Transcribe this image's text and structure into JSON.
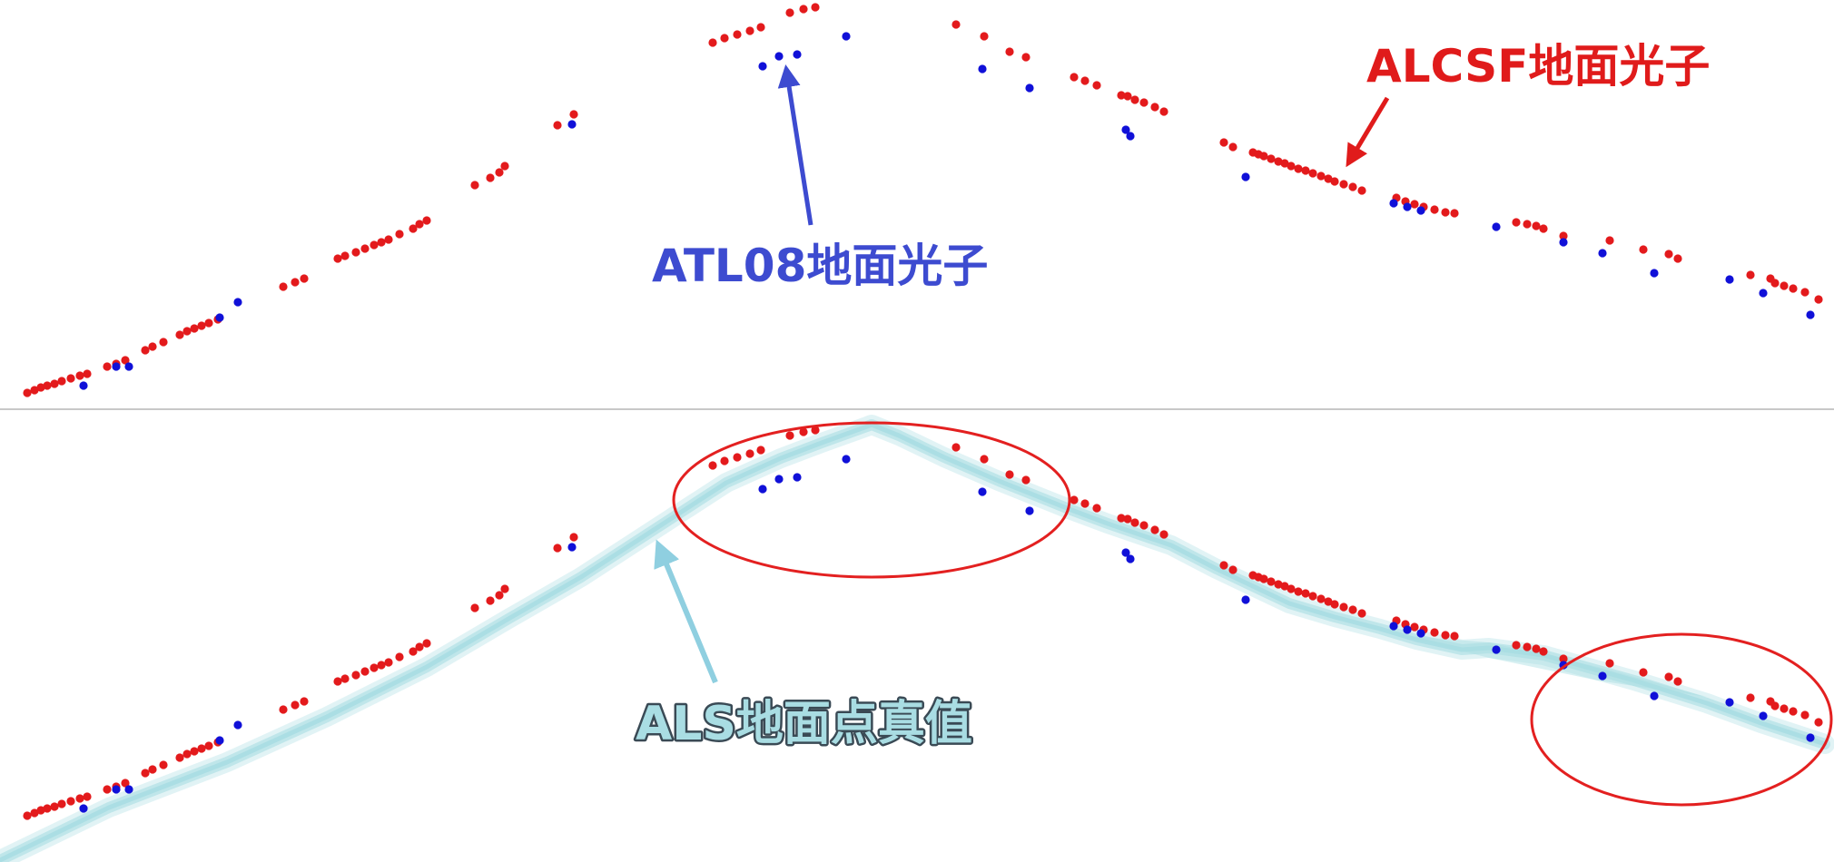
{
  "labels": {
    "atl08": "ATL08地面光子",
    "alcsf": "ALCSF地面光子",
    "als": "ALS地面点真值"
  },
  "colors": {
    "alcsf": "#e31a1c",
    "atl08": "#1010d8",
    "als": "#a9dde3",
    "atl08_label": "#3d4bd0",
    "alcsf_label": "#e01b1b",
    "als_label": "#8fcfe0",
    "highlight": "#e32020",
    "divider": "#c8c8c8"
  },
  "chart_data": {
    "type": "scatter",
    "panels": [
      "photons",
      "photons_with_als_truth"
    ],
    "series": [
      {
        "name": "ALCSF地面光子",
        "points": [
          [
            30,
            433
          ],
          [
            38,
            430
          ],
          [
            45,
            427
          ],
          [
            52,
            425
          ],
          [
            60,
            423
          ],
          [
            68,
            420
          ],
          [
            78,
            417
          ],
          [
            88,
            414
          ],
          [
            96,
            412
          ],
          [
            118,
            404
          ],
          [
            128,
            401
          ],
          [
            138,
            397
          ],
          [
            160,
            386
          ],
          [
            168,
            382
          ],
          [
            180,
            377
          ],
          [
            198,
            369
          ],
          [
            206,
            365
          ],
          [
            214,
            362
          ],
          [
            222,
            359
          ],
          [
            230,
            356
          ],
          [
            240,
            352
          ],
          [
            312,
            316
          ],
          [
            325,
            311
          ],
          [
            335,
            307
          ],
          [
            372,
            285
          ],
          [
            380,
            282
          ],
          [
            392,
            278
          ],
          [
            402,
            274
          ],
          [
            412,
            270
          ],
          [
            420,
            267
          ],
          [
            428,
            264
          ],
          [
            440,
            258
          ],
          [
            455,
            252
          ],
          [
            462,
            247
          ],
          [
            470,
            243
          ],
          [
            523,
            204
          ],
          [
            540,
            196
          ],
          [
            550,
            190
          ],
          [
            556,
            183
          ],
          [
            614,
            138
          ],
          [
            632,
            126
          ],
          [
            785,
            47
          ],
          [
            798,
            42
          ],
          [
            812,
            38
          ],
          [
            826,
            34
          ],
          [
            838,
            30
          ],
          [
            870,
            14
          ],
          [
            885,
            10
          ],
          [
            898,
            8
          ],
          [
            1053,
            27
          ],
          [
            1084,
            40
          ],
          [
            1112,
            57
          ],
          [
            1130,
            63
          ],
          [
            1183,
            85
          ],
          [
            1195,
            89
          ],
          [
            1208,
            94
          ],
          [
            1235,
            105
          ],
          [
            1242,
            106
          ],
          [
            1250,
            110
          ],
          [
            1260,
            113
          ],
          [
            1272,
            118
          ],
          [
            1282,
            123
          ],
          [
            1348,
            157
          ],
          [
            1358,
            162
          ],
          [
            1380,
            168
          ],
          [
            1386,
            170
          ],
          [
            1392,
            172
          ],
          [
            1400,
            175
          ],
          [
            1408,
            178
          ],
          [
            1415,
            180
          ],
          [
            1422,
            183
          ],
          [
            1430,
            186
          ],
          [
            1438,
            188
          ],
          [
            1446,
            191
          ],
          [
            1455,
            194
          ],
          [
            1463,
            197
          ],
          [
            1470,
            200
          ],
          [
            1480,
            203
          ],
          [
            1490,
            206
          ],
          [
            1500,
            210
          ],
          [
            1538,
            218
          ],
          [
            1548,
            222
          ],
          [
            1558,
            225
          ],
          [
            1568,
            228
          ],
          [
            1580,
            231
          ],
          [
            1592,
            234
          ],
          [
            1602,
            235
          ],
          [
            1670,
            245
          ],
          [
            1682,
            247
          ],
          [
            1692,
            249
          ],
          [
            1700,
            252
          ],
          [
            1722,
            260
          ],
          [
            1773,
            265
          ],
          [
            1810,
            275
          ],
          [
            1838,
            280
          ],
          [
            1848,
            285
          ],
          [
            1928,
            303
          ],
          [
            1950,
            307
          ],
          [
            1955,
            312
          ],
          [
            1965,
            315
          ],
          [
            1975,
            318
          ],
          [
            1988,
            322
          ],
          [
            2003,
            330
          ]
        ]
      },
      {
        "name": "ATL08地面光子",
        "points": [
          [
            92,
            425
          ],
          [
            128,
            404
          ],
          [
            142,
            404
          ],
          [
            242,
            350
          ],
          [
            262,
            333
          ],
          [
            630,
            137
          ],
          [
            840,
            73
          ],
          [
            858,
            62
          ],
          [
            878,
            60
          ],
          [
            932,
            40
          ],
          [
            1082,
            76
          ],
          [
            1134,
            97
          ],
          [
            1240,
            143
          ],
          [
            1245,
            150
          ],
          [
            1372,
            195
          ],
          [
            1535,
            224
          ],
          [
            1550,
            228
          ],
          [
            1565,
            232
          ],
          [
            1648,
            250
          ],
          [
            1722,
            267
          ],
          [
            1765,
            279
          ],
          [
            1822,
            301
          ],
          [
            1905,
            308
          ],
          [
            1942,
            323
          ],
          [
            1994,
            347
          ]
        ]
      }
    ],
    "ground_truth": {
      "name": "ALS地面点真值",
      "profile": [
        [
          0,
          948
        ],
        [
          120,
          890
        ],
        [
          250,
          840
        ],
        [
          360,
          790
        ],
        [
          470,
          735
        ],
        [
          560,
          682
        ],
        [
          640,
          636
        ],
        [
          720,
          584
        ],
        [
          800,
          532
        ],
        [
          860,
          505
        ],
        [
          905,
          488
        ],
        [
          955,
          470
        ],
        [
          960,
          468
        ],
        [
          990,
          480
        ],
        [
          1040,
          504
        ],
        [
          1100,
          530
        ],
        [
          1180,
          562
        ],
        [
          1220,
          577
        ],
        [
          1290,
          601
        ],
        [
          1340,
          627
        ],
        [
          1420,
          665
        ],
        [
          1470,
          680
        ],
        [
          1520,
          693
        ],
        [
          1560,
          705
        ],
        [
          1610,
          716
        ],
        [
          1640,
          714
        ],
        [
          1700,
          722
        ],
        [
          1800,
          750
        ],
        [
          1880,
          775
        ],
        [
          1940,
          797
        ],
        [
          2010,
          820
        ]
      ]
    },
    "lower_offset": 466
  }
}
